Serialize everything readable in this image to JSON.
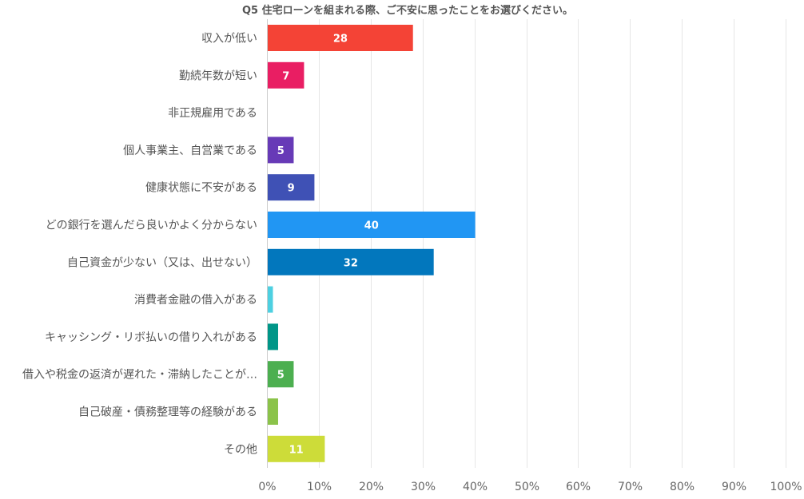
{
  "chart_data": {
    "type": "bar",
    "orientation": "horizontal",
    "title": "Q5 住宅ローンを組まれる際、ご不安に思ったことをお選びください。",
    "categories": [
      "収入が低い",
      "勤続年数が短い",
      "非正規雇用である",
      "個人事業主、自営業である",
      "健康状態に不安がある",
      "どの銀行を選んだら良いかよく分からない",
      "自己資金が少ない（又は、出せない）",
      "消費者金融の借入がある",
      "キャッシング・リボ払いの借り入れがある",
      "借入や税金の返済が遅れた・滞納したことが…",
      "自己破産・債務整理等の経験がある",
      "その他"
    ],
    "values": [
      28,
      7,
      0,
      5,
      9,
      40,
      32,
      1,
      2,
      5,
      2,
      11
    ],
    "data_labels": [
      "28",
      "7",
      "",
      "5",
      "9",
      "40",
      "32",
      "",
      "",
      "5",
      "",
      "11"
    ],
    "colors": [
      "#f44336",
      "#e91e63",
      "#9c27b0",
      "#673ab7",
      "#3f51b5",
      "#2196f3",
      "#0277bd",
      "#4dd0e1",
      "#009688",
      "#4caf50",
      "#8bc34a",
      "#cddc39"
    ],
    "xlim": [
      0,
      100
    ],
    "x_ticks": [
      "0%",
      "10%",
      "20%",
      "30%",
      "40%",
      "50%",
      "60%",
      "70%",
      "80%",
      "90%",
      "100%"
    ],
    "grid": true
  }
}
